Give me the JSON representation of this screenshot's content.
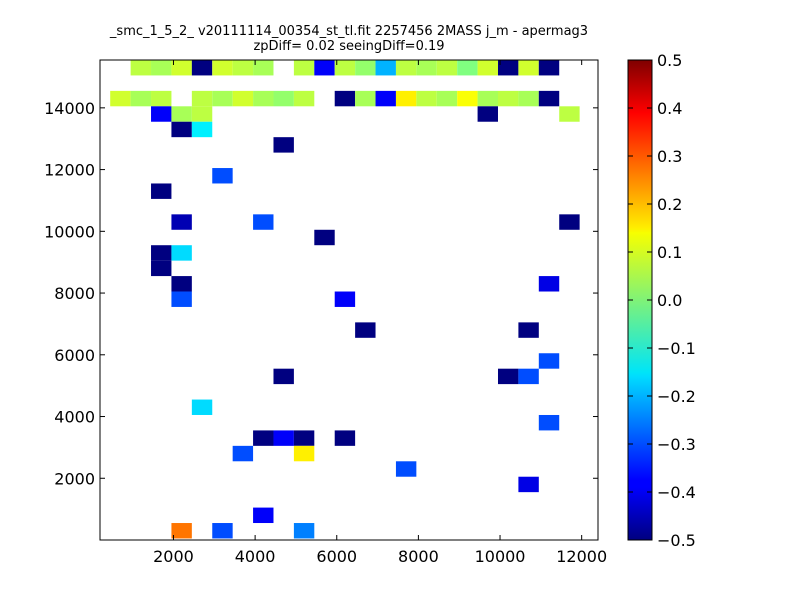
{
  "chart_data": {
    "type": "heatmap",
    "title": "_smc_1_5_2_ v20111114_00354_st_tl.fit 2257456 2MASS j_m - apermag3",
    "subtitle": "zpDiff= 0.02 seeingDiff=0.19",
    "xlabel": "",
    "ylabel": "",
    "xlim": [
      200,
      12400
    ],
    "ylim": [
      0,
      15550
    ],
    "x_ticks": [
      2000,
      4000,
      6000,
      8000,
      10000,
      12000
    ],
    "y_ticks": [
      2000,
      4000,
      6000,
      8000,
      10000,
      12000,
      14000
    ],
    "bin_width": 500,
    "bin_height": 500,
    "x_bins_start": 200,
    "colorbar": {
      "vmin": -0.5,
      "vmax": 0.5,
      "colormap": "jet",
      "ticks": [
        -0.5,
        -0.4,
        -0.3,
        -0.2,
        -0.1,
        0.0,
        0.1,
        0.2,
        0.3,
        0.4,
        0.5
      ],
      "tick_labels": [
        "−0.5",
        "−0.4",
        "−0.3",
        "−0.2",
        "−0.1",
        "0.0",
        "0.1",
        "0.2",
        "0.3",
        "0.4",
        "0.5"
      ]
    },
    "cells": [
      {
        "x": 1200,
        "y": 15300,
        "v": 0.06
      },
      {
        "x": 1700,
        "y": 15300,
        "v": 0.04
      },
      {
        "x": 2200,
        "y": 15300,
        "v": 0.08
      },
      {
        "x": 2700,
        "y": 15300,
        "v": -0.5
      },
      {
        "x": 3200,
        "y": 15300,
        "v": 0.08
      },
      {
        "x": 3700,
        "y": 15300,
        "v": 0.06
      },
      {
        "x": 4200,
        "y": 15300,
        "v": 0.04
      },
      {
        "x": 5200,
        "y": 15300,
        "v": 0.06
      },
      {
        "x": 5700,
        "y": 15300,
        "v": -0.38
      },
      {
        "x": 6200,
        "y": 15300,
        "v": 0.06
      },
      {
        "x": 6700,
        "y": 15300,
        "v": 0.02
      },
      {
        "x": 7200,
        "y": 15300,
        "v": -0.2
      },
      {
        "x": 7700,
        "y": 15300,
        "v": 0.06
      },
      {
        "x": 8200,
        "y": 15300,
        "v": 0.04
      },
      {
        "x": 8700,
        "y": 15300,
        "v": 0.06
      },
      {
        "x": 9200,
        "y": 15300,
        "v": 0.0
      },
      {
        "x": 9700,
        "y": 15300,
        "v": 0.08
      },
      {
        "x": 10200,
        "y": 15300,
        "v": -0.5
      },
      {
        "x": 10700,
        "y": 15300,
        "v": 0.08
      },
      {
        "x": 11200,
        "y": 15300,
        "v": -0.5
      },
      {
        "x": 700,
        "y": 14300,
        "v": 0.08
      },
      {
        "x": 1200,
        "y": 14300,
        "v": 0.04
      },
      {
        "x": 1700,
        "y": 14300,
        "v": 0.06
      },
      {
        "x": 2700,
        "y": 14300,
        "v": 0.06
      },
      {
        "x": 3200,
        "y": 14300,
        "v": 0.04
      },
      {
        "x": 3700,
        "y": 14300,
        "v": 0.08
      },
      {
        "x": 4200,
        "y": 14300,
        "v": 0.04
      },
      {
        "x": 4700,
        "y": 14300,
        "v": 0.02
      },
      {
        "x": 5200,
        "y": 14300,
        "v": 0.06
      },
      {
        "x": 6200,
        "y": 14300,
        "v": -0.5
      },
      {
        "x": 6700,
        "y": 14300,
        "v": 0.04
      },
      {
        "x": 7200,
        "y": 14300,
        "v": -0.38
      },
      {
        "x": 7700,
        "y": 14300,
        "v": 0.14
      },
      {
        "x": 8200,
        "y": 14300,
        "v": 0.06
      },
      {
        "x": 8700,
        "y": 14300,
        "v": 0.04
      },
      {
        "x": 9200,
        "y": 14300,
        "v": 0.12
      },
      {
        "x": 9700,
        "y": 14300,
        "v": 0.04
      },
      {
        "x": 10200,
        "y": 14300,
        "v": 0.06
      },
      {
        "x": 10700,
        "y": 14300,
        "v": 0.04
      },
      {
        "x": 11200,
        "y": 14300,
        "v": -0.5
      },
      {
        "x": 1700,
        "y": 13800,
        "v": -0.38
      },
      {
        "x": 2200,
        "y": 13800,
        "v": 0.04
      },
      {
        "x": 2700,
        "y": 13800,
        "v": 0.06
      },
      {
        "x": 9700,
        "y": 13800,
        "v": -0.5
      },
      {
        "x": 11700,
        "y": 13800,
        "v": 0.06
      },
      {
        "x": 2200,
        "y": 13300,
        "v": -0.5
      },
      {
        "x": 2700,
        "y": 13300,
        "v": -0.14
      },
      {
        "x": 4700,
        "y": 12800,
        "v": -0.5
      },
      {
        "x": 1700,
        "y": 11300,
        "v": -0.5
      },
      {
        "x": 3200,
        "y": 11800,
        "v": -0.3
      },
      {
        "x": 2200,
        "y": 10300,
        "v": -0.45
      },
      {
        "x": 4200,
        "y": 10300,
        "v": -0.3
      },
      {
        "x": 5700,
        "y": 9800,
        "v": -0.5
      },
      {
        "x": 11700,
        "y": 10300,
        "v": -0.5
      },
      {
        "x": 1700,
        "y": 9300,
        "v": -0.5
      },
      {
        "x": 1700,
        "y": 8800,
        "v": -0.5
      },
      {
        "x": 2200,
        "y": 9300,
        "v": -0.16
      },
      {
        "x": 2200,
        "y": 8300,
        "v": -0.5
      },
      {
        "x": 2200,
        "y": 7800,
        "v": -0.3
      },
      {
        "x": 11200,
        "y": 8300,
        "v": -0.4
      },
      {
        "x": 6200,
        "y": 7800,
        "v": -0.38
      },
      {
        "x": 6700,
        "y": 6800,
        "v": -0.5
      },
      {
        "x": 10700,
        "y": 6800,
        "v": -0.5
      },
      {
        "x": 11200,
        "y": 5800,
        "v": -0.3
      },
      {
        "x": 4700,
        "y": 5300,
        "v": -0.5
      },
      {
        "x": 10200,
        "y": 5300,
        "v": -0.5
      },
      {
        "x": 10700,
        "y": 5300,
        "v": -0.3
      },
      {
        "x": 2700,
        "y": 4300,
        "v": -0.16
      },
      {
        "x": 11200,
        "y": 3800,
        "v": -0.3
      },
      {
        "x": 4200,
        "y": 3300,
        "v": -0.5
      },
      {
        "x": 4700,
        "y": 3300,
        "v": -0.38
      },
      {
        "x": 5200,
        "y": 3300,
        "v": -0.5
      },
      {
        "x": 6200,
        "y": 3300,
        "v": -0.5
      },
      {
        "x": 3700,
        "y": 2800,
        "v": -0.3
      },
      {
        "x": 5200,
        "y": 2800,
        "v": 0.14
      },
      {
        "x": 7700,
        "y": 2300,
        "v": -0.3
      },
      {
        "x": 10700,
        "y": 1800,
        "v": -0.4
      },
      {
        "x": 4200,
        "y": 800,
        "v": -0.38
      },
      {
        "x": 2200,
        "y": 300,
        "v": 0.26
      },
      {
        "x": 3200,
        "y": 300,
        "v": -0.3
      },
      {
        "x": 5200,
        "y": 300,
        "v": -0.25
      }
    ]
  }
}
